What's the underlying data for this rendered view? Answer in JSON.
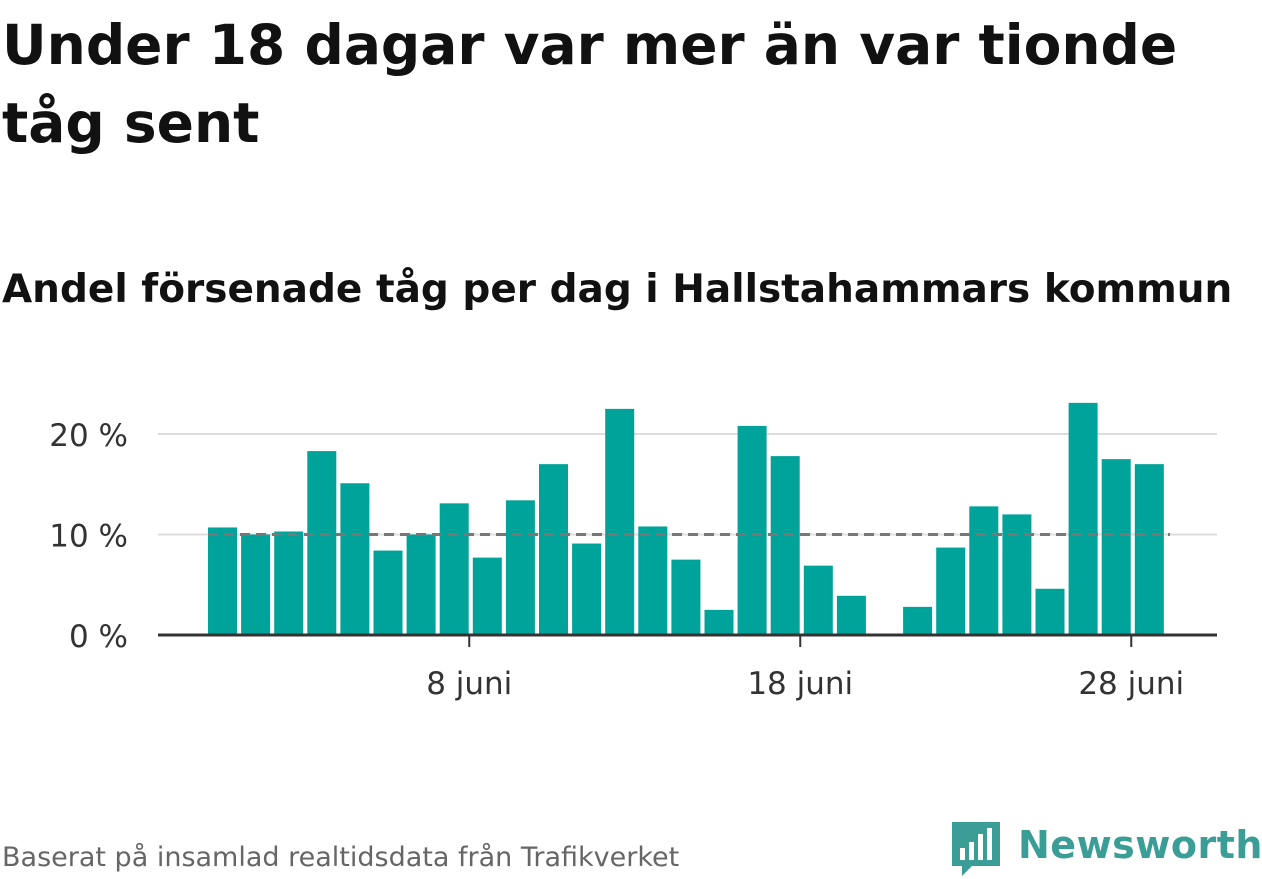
{
  "title": "Under 18 dagar var mer än var tionde tåg sent",
  "subtitle": "Andel försenade tåg per dag i Hallstahammars kommun",
  "source": "Baserat på insamlad realtidsdata från Trafikverket",
  "brand": {
    "name": "Newsworthy",
    "color": "#3a9e96"
  },
  "colors": {
    "bar": "#00a39a",
    "reference": "#777777",
    "grid": "#dddddd",
    "axis": "#333333"
  },
  "chart_data": {
    "type": "bar",
    "title": "Andel försenade tåg per dag i Hallstahammars kommun",
    "xlabel": "",
    "ylabel": "",
    "x_unit": "day of June",
    "categories": [
      1,
      2,
      3,
      4,
      5,
      6,
      7,
      8,
      9,
      10,
      11,
      12,
      13,
      14,
      15,
      16,
      17,
      18,
      19,
      20,
      21,
      22,
      23,
      24,
      25,
      26,
      27,
      28,
      29,
      30
    ],
    "values": [
      10.7,
      10.0,
      10.3,
      18.3,
      15.1,
      8.4,
      10.0,
      13.1,
      7.7,
      13.4,
      17.0,
      9.1,
      22.5,
      10.8,
      7.5,
      2.5,
      20.8,
      17.8,
      6.9,
      3.9,
      null,
      2.8,
      8.7,
      12.8,
      12.0,
      4.6,
      23.1,
      17.5,
      17.0,
      null
    ],
    "reference_line": 10,
    "ylim": [
      0,
      25
    ],
    "y_ticks": [
      {
        "value": 0,
        "label": "0 %"
      },
      {
        "value": 10,
        "label": "10 %"
      },
      {
        "value": 20,
        "label": "20 %"
      }
    ],
    "x_ticks": [
      {
        "value": 8,
        "label": "8 juni"
      },
      {
        "value": 18,
        "label": "18 juni"
      },
      {
        "value": 28,
        "label": "28 juni"
      }
    ],
    "grid": true,
    "legend": "none"
  }
}
